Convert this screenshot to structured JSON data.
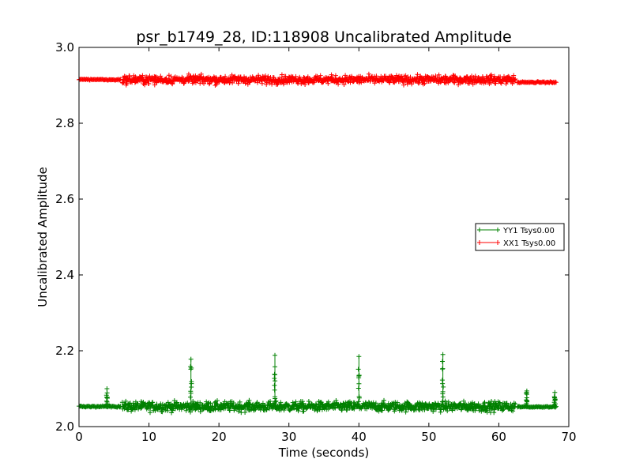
{
  "chart_data": {
    "type": "scatter",
    "title": "psr_b1749_28, ID:118908 Uncalibrated Amplitude",
    "xlabel": "Time (seconds)",
    "ylabel": "Uncalibrated Amplitude",
    "xlim": [
      0,
      70
    ],
    "ylim": [
      2.0,
      3.0
    ],
    "xticks": [
      "0",
      "10",
      "20",
      "30",
      "40",
      "50",
      "60",
      "70"
    ],
    "yticks": [
      "2.0",
      "2.2",
      "2.4",
      "2.6",
      "2.8",
      "3.0"
    ],
    "grid": false,
    "legend_position": "center-right",
    "marker": "+",
    "series": [
      {
        "name": "YY1 Tsys0.00",
        "color": "#008000",
        "baseline_segments": [
          {
            "x_start": 0.0,
            "x_end": 6.0,
            "y_center": 2.053,
            "spread": 0.004
          },
          {
            "x_start": 6.2,
            "x_end": 62.4,
            "y_center": 2.053,
            "spread": 0.028
          },
          {
            "x_start": 62.6,
            "x_end": 68.2,
            "y_center": 2.052,
            "spread": 0.004
          }
        ],
        "spikes": [
          {
            "x": 4.0,
            "y_max": 2.1
          },
          {
            "x": 16.0,
            "y_max": 2.178
          },
          {
            "x": 28.0,
            "y_max": 2.188
          },
          {
            "x": 40.0,
            "y_max": 2.185
          },
          {
            "x": 52.0,
            "y_max": 2.19
          },
          {
            "x": 64.0,
            "y_max": 2.094
          },
          {
            "x": 68.0,
            "y_max": 2.09
          }
        ]
      },
      {
        "name": "XX1 Tsys0.00",
        "color": "#ff0000",
        "baseline_segments": [
          {
            "x_start": 0.0,
            "x_end": 6.0,
            "y_center": 2.915,
            "spread": 0.004
          },
          {
            "x_start": 6.2,
            "x_end": 62.4,
            "y_center": 2.915,
            "spread": 0.024
          },
          {
            "x_start": 62.6,
            "x_end": 68.2,
            "y_center": 2.908,
            "spread": 0.004
          }
        ],
        "spikes": []
      }
    ]
  }
}
